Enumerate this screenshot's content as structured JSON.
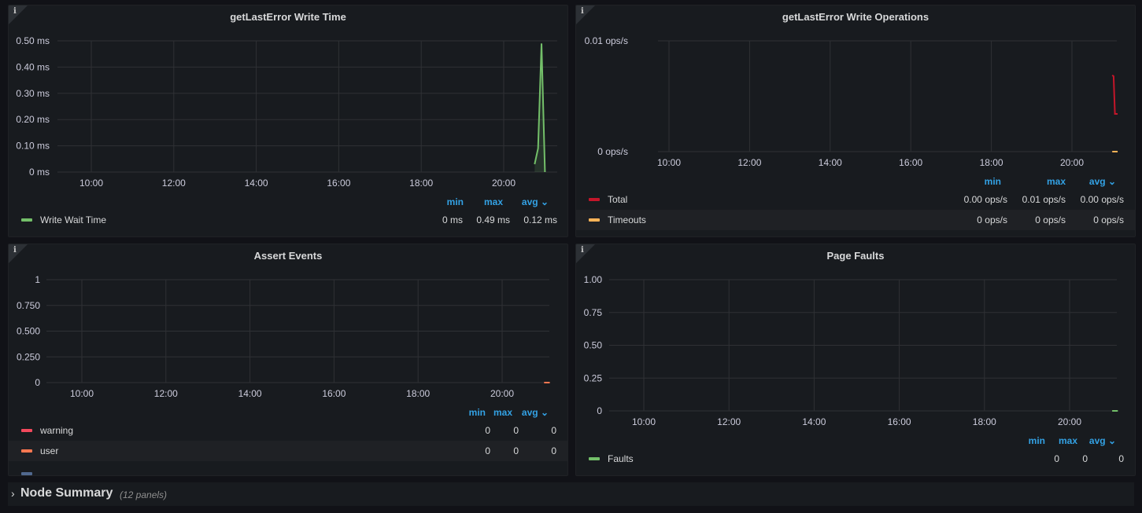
{
  "panels": {
    "p1": {
      "title": "getLastError Write Time",
      "y_ticks": [
        "0.50 ms",
        "0.40 ms",
        "0.30 ms",
        "0.20 ms",
        "0.10 ms",
        "0 ms"
      ],
      "x_ticks": [
        "10:00",
        "12:00",
        "14:00",
        "16:00",
        "18:00",
        "20:00"
      ],
      "legend_headers": [
        "min",
        "max",
        "avg"
      ],
      "sort_icon": "chevron-down-icon",
      "series": [
        {
          "name": "Write Wait Time",
          "color": "#73bf69",
          "min": "0 ms",
          "max": "0.49 ms",
          "avg": "0.12 ms"
        }
      ]
    },
    "p2": {
      "title": "getLastError Write Operations",
      "y_ticks": [
        "0.01 ops/s",
        "0 ops/s"
      ],
      "x_ticks": [
        "10:00",
        "12:00",
        "14:00",
        "16:00",
        "18:00",
        "20:00"
      ],
      "legend_headers": [
        "min",
        "max",
        "avg"
      ],
      "series": [
        {
          "name": "Total",
          "color": "#c4162a",
          "min": "0.00 ops/s",
          "max": "0.01 ops/s",
          "avg": "0.00 ops/s"
        },
        {
          "name": "Timeouts",
          "color": "#ffb357",
          "min": "0 ops/s",
          "max": "0 ops/s",
          "avg": "0 ops/s"
        }
      ]
    },
    "p3": {
      "title": "Assert Events",
      "y_ticks": [
        "1",
        "0.750",
        "0.500",
        "0.250",
        "0"
      ],
      "x_ticks": [
        "10:00",
        "12:00",
        "14:00",
        "16:00",
        "18:00",
        "20:00"
      ],
      "legend_headers": [
        "min",
        "max",
        "avg"
      ],
      "series": [
        {
          "name": "warning",
          "color": "#f2495c",
          "min": "0",
          "max": "0",
          "avg": "0"
        },
        {
          "name": "user",
          "color": "#ff7851",
          "min": "0",
          "max": "0",
          "avg": "0"
        }
      ]
    },
    "p4": {
      "title": "Page Faults",
      "y_ticks": [
        "1.00",
        "0.75",
        "0.50",
        "0.25",
        "0"
      ],
      "x_ticks": [
        "10:00",
        "12:00",
        "14:00",
        "16:00",
        "18:00",
        "20:00"
      ],
      "legend_headers": [
        "min",
        "max",
        "avg"
      ],
      "series": [
        {
          "name": "Faults",
          "color": "#73bf69",
          "min": "0",
          "max": "0",
          "avg": "0"
        }
      ]
    }
  },
  "row": {
    "title": "Node Summary",
    "count": "(12 panels)",
    "icon": "chevron-right-icon"
  },
  "chart_data": [
    {
      "type": "line",
      "title": "getLastError Write Time",
      "ylabel": "",
      "xlabel": "",
      "ylim": [
        0,
        0.5
      ],
      "series": [
        {
          "name": "Write Wait Time",
          "x": [
            "20:45",
            "20:50",
            "20:55",
            "21:00"
          ],
          "values": [
            0.03,
            0.09,
            0.49,
            0
          ]
        }
      ]
    },
    {
      "type": "line",
      "title": "getLastError Write Operations",
      "ylim": [
        0,
        0.01
      ],
      "series": [
        {
          "name": "Total",
          "x": [
            "21:00",
            "21:02",
            "21:04",
            "21:08"
          ],
          "values": [
            0.0069,
            0.0068,
            0.0034,
            0.0034
          ]
        },
        {
          "name": "Timeouts",
          "x": [
            "21:00",
            "21:08"
          ],
          "values": [
            0,
            0
          ]
        }
      ]
    },
    {
      "type": "line",
      "title": "Assert Events",
      "ylim": [
        0,
        1
      ],
      "series": [
        {
          "name": "warning",
          "x": [
            "21:00",
            "21:08"
          ],
          "values": [
            0,
            0
          ]
        },
        {
          "name": "user",
          "x": [
            "21:00",
            "21:08"
          ],
          "values": [
            0,
            0
          ]
        }
      ]
    },
    {
      "type": "line",
      "title": "Page Faults",
      "ylim": [
        0,
        1
      ],
      "series": [
        {
          "name": "Faults",
          "x": [
            "21:00",
            "21:08"
          ],
          "values": [
            0,
            0
          ]
        }
      ]
    }
  ]
}
